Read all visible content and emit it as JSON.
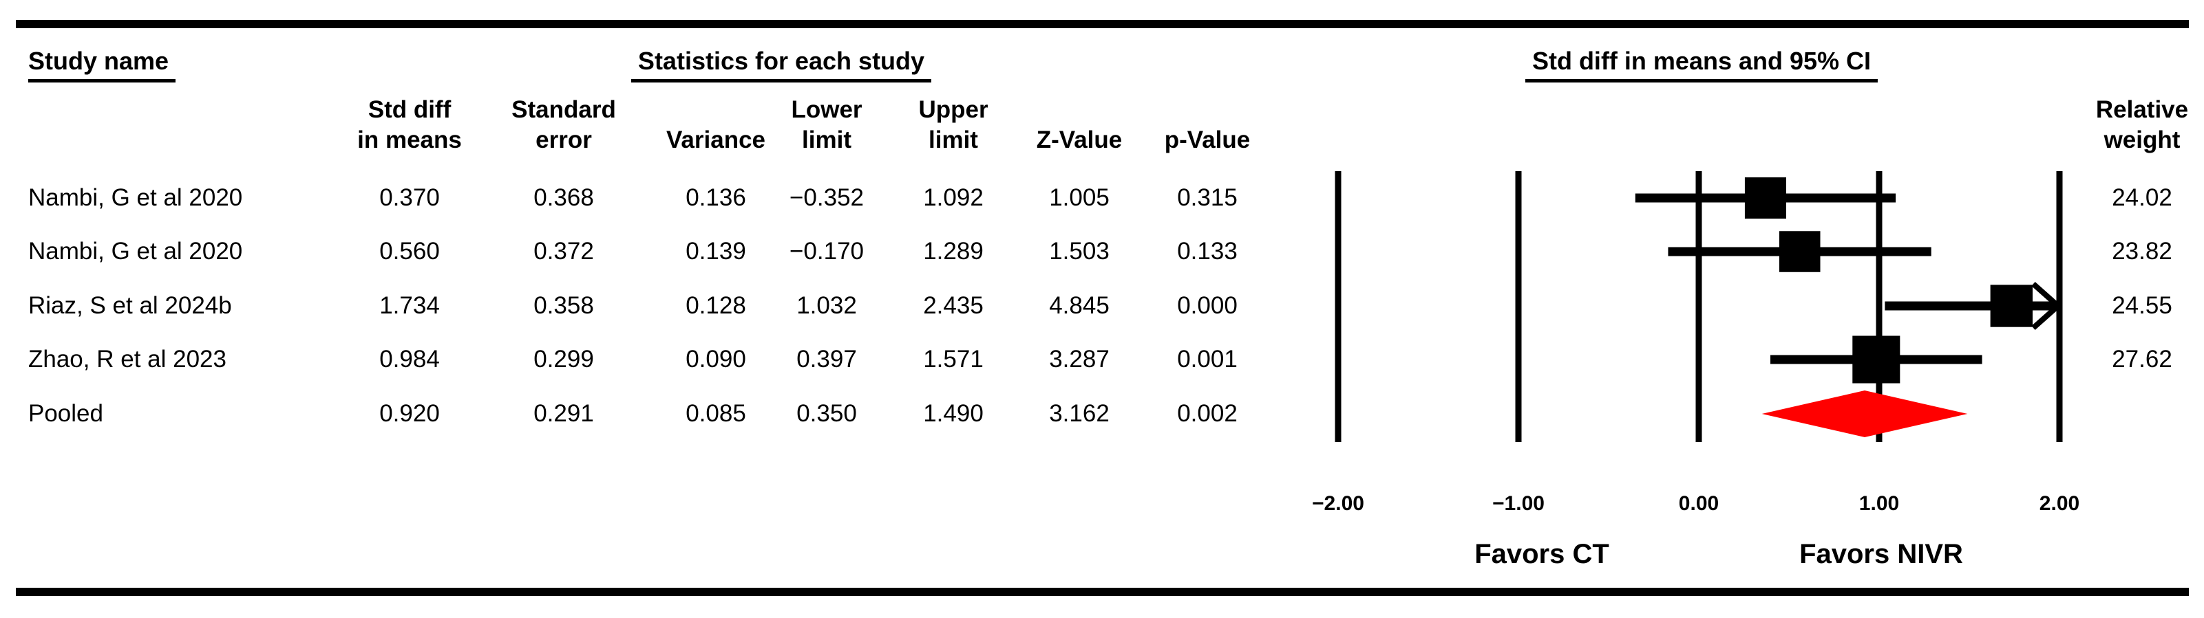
{
  "header": {
    "study_name": "Study name",
    "statistics": "Statistics for each study",
    "ci_header": "Std diff in means and 95% CI"
  },
  "columns": {
    "stat_headers": [
      [
        "Std diff",
        "in means"
      ],
      [
        "Standard",
        "error"
      ],
      [
        "",
        "Variance"
      ],
      [
        "Lower",
        "limit"
      ],
      [
        "Upper",
        "limit"
      ],
      [
        "",
        "Z-Value"
      ],
      [
        "",
        "p-Value"
      ]
    ],
    "weight_header": [
      "Relative",
      "weight"
    ]
  },
  "chart_data": {
    "type": "forest",
    "title": "Std diff in means and 95% CI",
    "effect_label": "Std diff in means",
    "xlim": [
      -2.0,
      2.0
    ],
    "x_ticks": [
      -2.0,
      -1.0,
      0.0,
      1.0,
      2.0
    ],
    "x_tick_labels": [
      "−2.00",
      "−1.00",
      "0.00",
      "1.00",
      "2.00"
    ],
    "favors_left": "Favors CT",
    "favors_right": "Favors NIVR",
    "grid": true,
    "marker_color": "#000000",
    "diamond_color": "#ff0000",
    "studies": [
      {
        "name": "Nambi, G et al 2020",
        "std_diff": 0.37,
        "std_err": 0.368,
        "variance": 0.136,
        "lower": -0.352,
        "upper": 1.092,
        "z_value": 1.005,
        "p_value": 0.315,
        "weight": 24.02
      },
      {
        "name": "Nambi, G et al 2020",
        "std_diff": 0.56,
        "std_err": 0.372,
        "variance": 0.139,
        "lower": -0.17,
        "upper": 1.289,
        "z_value": 1.503,
        "p_value": 0.133,
        "weight": 23.82
      },
      {
        "name": "Riaz, S et al 2024b",
        "std_diff": 1.734,
        "std_err": 0.358,
        "variance": 0.128,
        "lower": 1.032,
        "upper": 2.435,
        "z_value": 4.845,
        "p_value": 0.0,
        "weight": 24.55
      },
      {
        "name": "Zhao, R et al 2023",
        "std_diff": 0.984,
        "std_err": 0.299,
        "variance": 0.09,
        "lower": 0.397,
        "upper": 1.571,
        "z_value": 3.287,
        "p_value": 0.001,
        "weight": 27.62
      }
    ],
    "pooled": {
      "name": "Pooled",
      "std_diff": 0.92,
      "std_err": 0.291,
      "variance": 0.085,
      "lower": 0.35,
      "upper": 1.49,
      "z_value": 3.162,
      "p_value": 0.002
    }
  }
}
